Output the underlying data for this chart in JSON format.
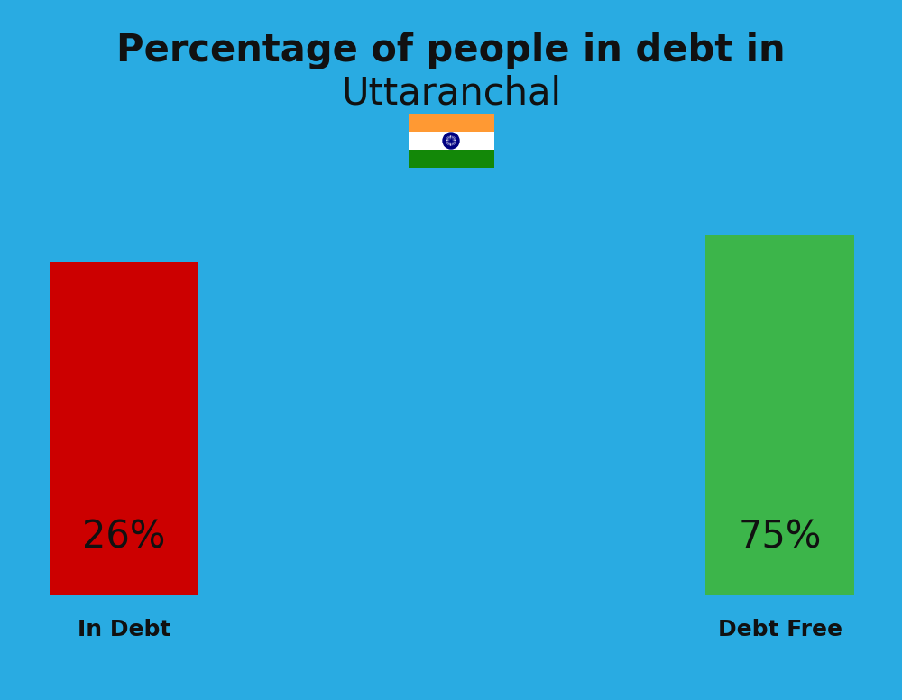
{
  "title_line1": "Percentage of people in debt in",
  "title_line2": "Uttaranchal",
  "title_fontsize": 30,
  "subtitle_fontsize": 30,
  "background_color": "#29ABE2",
  "bar_left_label": "26%",
  "bar_left_color": "#CC0000",
  "bar_left_caption": "In Debt",
  "bar_right_label": "75%",
  "bar_right_color": "#3CB54A",
  "bar_right_caption": "Debt Free",
  "label_fontsize": 30,
  "caption_fontsize": 18,
  "title_color": "#111111",
  "label_color": "#111111",
  "caption_color": "#111111",
  "flag_saffron": "#FF9933",
  "flag_white": "#FFFFFF",
  "flag_green": "#138808",
  "flag_chakra": "#000080"
}
